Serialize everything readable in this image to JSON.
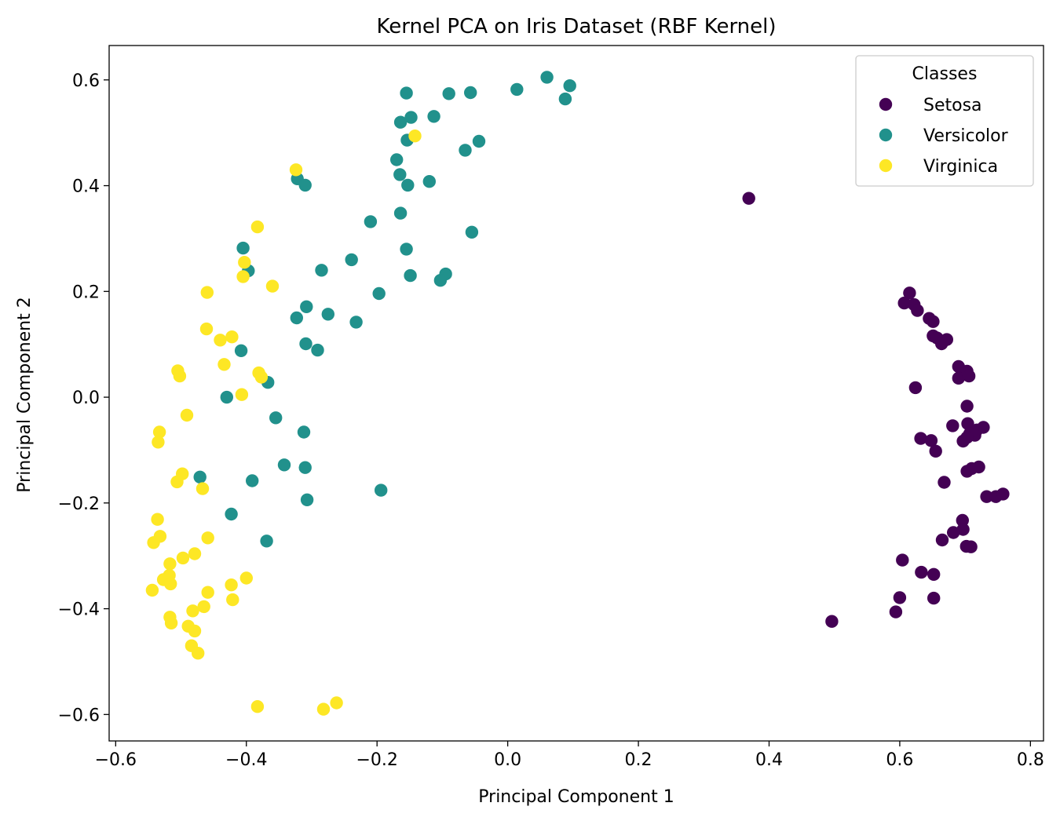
{
  "chart_data": {
    "type": "scatter",
    "title": "Kernel PCA on Iris Dataset (RBF Kernel)",
    "xlabel": "Principal Component 1",
    "ylabel": "Principal Component 2",
    "xlim": [
      -0.61,
      0.82
    ],
    "ylim": [
      -0.65,
      0.665
    ],
    "xticks": [
      -0.6,
      -0.4,
      -0.2,
      0.0,
      0.2,
      0.4,
      0.6,
      0.8
    ],
    "yticks": [
      -0.6,
      -0.4,
      -0.2,
      0.0,
      0.2,
      0.4,
      0.6
    ],
    "xtick_labels": [
      "−0.6",
      "−0.4",
      "−0.2",
      "0.0",
      "0.2",
      "0.4",
      "0.6",
      "0.8"
    ],
    "ytick_labels": [
      "−0.6",
      "−0.4",
      "−0.2",
      "0.0",
      "0.2",
      "0.4",
      "0.6"
    ],
    "grid": false,
    "legend": {
      "title": "Classes",
      "position": "top-right"
    },
    "series": [
      {
        "name": "Setosa",
        "color": "#440154",
        "points": [
          [
            0.369,
            0.376
          ],
          [
            0.615,
            0.197
          ],
          [
            0.607,
            0.178
          ],
          [
            0.622,
            0.175
          ],
          [
            0.627,
            0.164
          ],
          [
            0.645,
            0.149
          ],
          [
            0.651,
            0.143
          ],
          [
            0.651,
            0.116
          ],
          [
            0.657,
            0.112
          ],
          [
            0.672,
            0.109
          ],
          [
            0.664,
            0.101
          ],
          [
            0.69,
            0.058
          ],
          [
            0.703,
            0.049
          ],
          [
            0.69,
            0.036
          ],
          [
            0.706,
            0.04
          ],
          [
            0.624,
            0.018
          ],
          [
            0.703,
            -0.017
          ],
          [
            0.704,
            -0.05
          ],
          [
            0.681,
            -0.054
          ],
          [
            0.728,
            -0.057
          ],
          [
            0.718,
            -0.062
          ],
          [
            0.707,
            -0.069
          ],
          [
            0.715,
            -0.072
          ],
          [
            0.703,
            -0.076
          ],
          [
            0.632,
            -0.078
          ],
          [
            0.648,
            -0.082
          ],
          [
            0.697,
            -0.083
          ],
          [
            0.655,
            -0.102
          ],
          [
            0.721,
            -0.132
          ],
          [
            0.71,
            -0.135
          ],
          [
            0.703,
            -0.14
          ],
          [
            0.668,
            -0.161
          ],
          [
            0.733,
            -0.188
          ],
          [
            0.747,
            -0.188
          ],
          [
            0.758,
            -0.183
          ],
          [
            0.696,
            -0.233
          ],
          [
            0.682,
            -0.256
          ],
          [
            0.697,
            -0.25
          ],
          [
            0.665,
            -0.27
          ],
          [
            0.702,
            -0.282
          ],
          [
            0.709,
            -0.283
          ],
          [
            0.604,
            -0.308
          ],
          [
            0.633,
            -0.331
          ],
          [
            0.652,
            -0.335
          ],
          [
            0.6,
            -0.379
          ],
          [
            0.652,
            -0.38
          ],
          [
            0.594,
            -0.406
          ],
          [
            0.496,
            -0.424
          ]
        ]
      },
      {
        "name": "Versicolor",
        "color": "#21918c",
        "points": [
          [
            0.06,
            0.605
          ],
          [
            0.095,
            0.589
          ],
          [
            0.088,
            0.564
          ],
          [
            0.014,
            0.582
          ],
          [
            -0.155,
            0.575
          ],
          [
            -0.09,
            0.574
          ],
          [
            -0.057,
            0.576
          ],
          [
            -0.148,
            0.529
          ],
          [
            -0.113,
            0.531
          ],
          [
            -0.164,
            0.52
          ],
          [
            -0.154,
            0.486
          ],
          [
            -0.044,
            0.484
          ],
          [
            -0.065,
            0.467
          ],
          [
            -0.17,
            0.449
          ],
          [
            -0.165,
            0.421
          ],
          [
            -0.322,
            0.413
          ],
          [
            -0.31,
            0.401
          ],
          [
            -0.153,
            0.401
          ],
          [
            -0.12,
            0.408
          ],
          [
            -0.164,
            0.348
          ],
          [
            -0.21,
            0.332
          ],
          [
            -0.055,
            0.312
          ],
          [
            -0.405,
            0.282
          ],
          [
            -0.155,
            0.28
          ],
          [
            -0.239,
            0.26
          ],
          [
            -0.397,
            0.239
          ],
          [
            -0.285,
            0.24
          ],
          [
            -0.149,
            0.23
          ],
          [
            -0.095,
            0.233
          ],
          [
            -0.103,
            0.221
          ],
          [
            -0.197,
            0.196
          ],
          [
            -0.308,
            0.171
          ],
          [
            -0.275,
            0.157
          ],
          [
            -0.323,
            0.15
          ],
          [
            -0.232,
            0.142
          ],
          [
            -0.309,
            0.101
          ],
          [
            -0.408,
            0.088
          ],
          [
            -0.291,
            0.089
          ],
          [
            -0.367,
            0.028
          ],
          [
            -0.43,
            0.0
          ],
          [
            -0.355,
            -0.039
          ],
          [
            -0.312,
            -0.066
          ],
          [
            -0.342,
            -0.128
          ],
          [
            -0.31,
            -0.133
          ],
          [
            -0.471,
            -0.151
          ],
          [
            -0.391,
            -0.158
          ],
          [
            -0.194,
            -0.176
          ],
          [
            -0.307,
            -0.194
          ],
          [
            -0.423,
            -0.221
          ],
          [
            -0.369,
            -0.272
          ]
        ]
      },
      {
        "name": "Virginica",
        "color": "#fde725",
        "points": [
          [
            -0.142,
            0.494
          ],
          [
            -0.324,
            0.43
          ],
          [
            -0.383,
            0.322
          ],
          [
            -0.403,
            0.255
          ],
          [
            -0.405,
            0.228
          ],
          [
            -0.36,
            0.21
          ],
          [
            -0.46,
            0.198
          ],
          [
            -0.461,
            0.129
          ],
          [
            -0.422,
            0.114
          ],
          [
            -0.44,
            0.108
          ],
          [
            -0.434,
            0.062
          ],
          [
            -0.505,
            0.05
          ],
          [
            -0.502,
            0.04
          ],
          [
            -0.381,
            0.046
          ],
          [
            -0.377,
            0.038
          ],
          [
            -0.407,
            0.005
          ],
          [
            -0.491,
            -0.034
          ],
          [
            -0.533,
            -0.066
          ],
          [
            -0.535,
            -0.085
          ],
          [
            -0.498,
            -0.145
          ],
          [
            -0.506,
            -0.16
          ],
          [
            -0.467,
            -0.173
          ],
          [
            -0.536,
            -0.231
          ],
          [
            -0.459,
            -0.266
          ],
          [
            -0.532,
            -0.263
          ],
          [
            -0.542,
            -0.275
          ],
          [
            -0.479,
            -0.296
          ],
          [
            -0.497,
            -0.304
          ],
          [
            -0.517,
            -0.315
          ],
          [
            -0.518,
            -0.337
          ],
          [
            -0.527,
            -0.345
          ],
          [
            -0.516,
            -0.353
          ],
          [
            -0.4,
            -0.342
          ],
          [
            -0.423,
            -0.355
          ],
          [
            -0.544,
            -0.365
          ],
          [
            -0.459,
            -0.369
          ],
          [
            -0.421,
            -0.383
          ],
          [
            -0.465,
            -0.396
          ],
          [
            -0.482,
            -0.404
          ],
          [
            -0.517,
            -0.416
          ],
          [
            -0.515,
            -0.427
          ],
          [
            -0.489,
            -0.433
          ],
          [
            -0.479,
            -0.442
          ],
          [
            -0.484,
            -0.47
          ],
          [
            -0.474,
            -0.484
          ],
          [
            -0.383,
            -0.585
          ],
          [
            -0.282,
            -0.59
          ],
          [
            -0.262,
            -0.578
          ]
        ]
      }
    ]
  }
}
